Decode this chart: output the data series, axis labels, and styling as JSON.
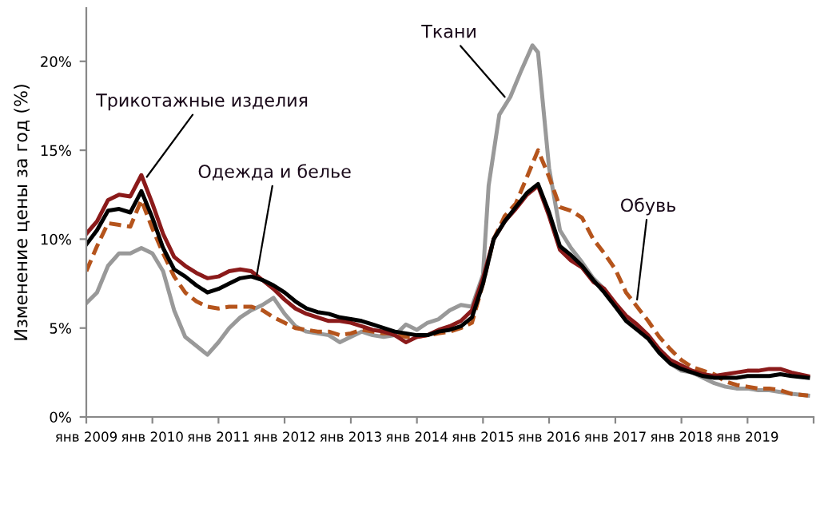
{
  "chart_data": {
    "type": "line",
    "ylabel": "Изменение цены за год (%)",
    "x": [
      "2009-01",
      "2009-03",
      "2009-05",
      "2009-07",
      "2009-09",
      "2009-11",
      "2010-01",
      "2010-03",
      "2010-05",
      "2010-07",
      "2010-09",
      "2010-11",
      "2011-01",
      "2011-03",
      "2011-05",
      "2011-07",
      "2011-09",
      "2011-11",
      "2012-01",
      "2012-03",
      "2012-05",
      "2012-07",
      "2012-09",
      "2012-11",
      "2013-01",
      "2013-03",
      "2013-05",
      "2013-07",
      "2013-09",
      "2013-11",
      "2014-01",
      "2014-03",
      "2014-05",
      "2014-07",
      "2014-09",
      "2014-11",
      "2015-01",
      "2015-03",
      "2015-05",
      "2015-07",
      "2015-09",
      "2015-11",
      "2016-01",
      "2016-03",
      "2016-05",
      "2016-07",
      "2016-09",
      "2016-11",
      "2017-01",
      "2017-03",
      "2017-05",
      "2017-07",
      "2017-09",
      "2017-11",
      "2018-01",
      "2018-03",
      "2018-05",
      "2018-07",
      "2018-09",
      "2018-11",
      "2019-01",
      "2019-03",
      "2019-05",
      "2019-07",
      "2019-09",
      "2019-12"
    ],
    "series": [
      {
        "color": "#999999",
        "x": [
          "2009-01",
          "2009-03",
          "2009-05",
          "2009-07",
          "2009-09",
          "2009-11",
          "2010-01",
          "2010-03",
          "2010-05",
          "2010-07",
          "2010-09",
          "2010-11",
          "2011-01",
          "2011-03",
          "2011-05",
          "2011-07",
          "2011-09",
          "2011-11",
          "2012-01",
          "2012-03",
          "2012-05",
          "2012-07",
          "2012-09",
          "2012-11",
          "2013-01",
          "2013-03",
          "2013-05",
          "2013-07",
          "2013-09",
          "2013-11",
          "2014-01",
          "2014-03",
          "2014-05",
          "2014-07",
          "2014-09",
          "2014-11",
          "2015-01",
          "2015-02",
          "2015-04",
          "2015-06",
          "2015-08",
          "2015-10",
          "2015-11",
          "2016-01",
          "2016-03",
          "2016-05",
          "2016-07",
          "2016-09",
          "2016-11",
          "2017-01",
          "2017-03",
          "2017-05",
          "2017-07",
          "2017-09",
          "2017-11",
          "2018-01",
          "2018-03",
          "2018-05",
          "2018-07",
          "2018-09",
          "2018-11",
          "2019-01",
          "2019-03",
          "2019-05",
          "2019-07",
          "2019-09",
          "2019-12"
        ],
        "values": [
          6.4,
          7.0,
          8.5,
          9.2,
          9.2,
          9.5,
          9.2,
          8.2,
          6.0,
          4.5,
          4.0,
          3.5,
          4.2,
          5.0,
          5.6,
          6.0,
          6.3,
          6.7,
          5.8,
          5.1,
          4.8,
          4.7,
          4.6,
          4.2,
          4.5,
          4.8,
          4.6,
          4.5,
          4.6,
          5.2,
          4.9,
          5.3,
          5.5,
          6.0,
          6.3,
          6.2,
          8.0,
          13.0,
          17.0,
          18.0,
          19.5,
          20.9,
          20.5,
          14.0,
          10.5,
          9.5,
          8.7,
          7.8,
          7.2,
          6.3,
          5.5,
          5.1,
          4.5,
          3.8,
          3.0,
          2.6,
          2.5,
          2.2,
          1.9,
          1.7,
          1.6,
          1.6,
          1.5,
          1.5,
          1.4,
          1.3,
          1.2
        ]
      },
      {
        "color": "#b5541c",
        "line_style": "dashed",
        "values": [
          8.2,
          9.6,
          10.9,
          10.8,
          10.7,
          12.2,
          10.6,
          9.2,
          7.9,
          7.0,
          6.5,
          6.2,
          6.1,
          6.2,
          6.2,
          6.2,
          6.0,
          5.6,
          5.3,
          5.0,
          4.9,
          4.8,
          4.8,
          4.6,
          4.7,
          4.9,
          4.8,
          4.7,
          4.7,
          4.5,
          4.5,
          4.6,
          4.7,
          4.8,
          5.0,
          5.3,
          7.5,
          10.0,
          11.3,
          12.0,
          13.5,
          15.0,
          13.5,
          11.8,
          11.6,
          11.2,
          10.0,
          9.2,
          8.3,
          7.0,
          6.2,
          5.4,
          4.5,
          3.8,
          3.2,
          2.8,
          2.6,
          2.4,
          2.0,
          1.8,
          1.7,
          1.6,
          1.6,
          1.5,
          1.3,
          1.2
        ]
      },
      {
        "color": "#8b1a1a",
        "values": [
          10.3,
          11.0,
          12.2,
          12.5,
          12.4,
          13.6,
          12.0,
          10.3,
          9.0,
          8.5,
          8.1,
          7.8,
          7.9,
          8.2,
          8.3,
          8.2,
          7.7,
          7.2,
          6.6,
          6.1,
          5.8,
          5.6,
          5.4,
          5.4,
          5.3,
          5.1,
          4.9,
          4.8,
          4.6,
          4.2,
          4.5,
          4.6,
          4.9,
          5.1,
          5.4,
          6.0,
          7.8,
          10.0,
          11.0,
          11.7,
          12.5,
          13.0,
          11.3,
          9.4,
          8.8,
          8.4,
          7.6,
          7.2,
          6.4,
          5.7,
          5.2,
          4.6,
          3.8,
          3.2,
          2.9,
          2.6,
          2.4,
          2.3,
          2.4,
          2.5,
          2.6,
          2.6,
          2.7,
          2.7,
          2.5,
          2.3
        ]
      },
      {
        "color": "#000000",
        "values": [
          9.7,
          10.5,
          11.6,
          11.7,
          11.5,
          12.7,
          11.2,
          9.5,
          8.3,
          7.9,
          7.4,
          7.0,
          7.2,
          7.5,
          7.8,
          7.9,
          7.7,
          7.4,
          7.0,
          6.5,
          6.1,
          5.9,
          5.8,
          5.6,
          5.5,
          5.4,
          5.2,
          5.0,
          4.8,
          4.7,
          4.6,
          4.6,
          4.8,
          4.9,
          5.1,
          5.6,
          7.5,
          10.0,
          11.0,
          11.8,
          12.6,
          13.1,
          11.5,
          9.6,
          9.1,
          8.5,
          7.7,
          7.0,
          6.2,
          5.4,
          4.9,
          4.4,
          3.6,
          3.0,
          2.7,
          2.5,
          2.3,
          2.2,
          2.2,
          2.2,
          2.3,
          2.3,
          2.3,
          2.4,
          2.3,
          2.2
        ]
      }
    ],
    "xlim": [
      "2009-01",
      "2020-01"
    ],
    "xticks": [
      {
        "value": "2009-01",
        "label": "янв 2009"
      },
      {
        "value": "2010-01",
        "label": "янв 2010"
      },
      {
        "value": "2011-01",
        "label": "янв 2011"
      },
      {
        "value": "2012-01",
        "label": "янв 2012"
      },
      {
        "value": "2013-01",
        "label": "янв 2013"
      },
      {
        "value": "2014-01",
        "label": "янв 2014"
      },
      {
        "value": "2015-01",
        "label": "янв 2015"
      },
      {
        "value": "2016-01",
        "label": "янв 2016"
      },
      {
        "value": "2017-01",
        "label": "янв 2017"
      },
      {
        "value": "2018-01",
        "label": "янв 2018"
      },
      {
        "value": "2019-01",
        "label": "янв 2019"
      },
      {
        "value": "2020-01",
        "label": null
      }
    ],
    "ylim": [
      0,
      23
    ],
    "yticks": [
      {
        "value": 0,
        "label": "0%"
      },
      {
        "value": 5,
        "label": "5%"
      },
      {
        "value": 10,
        "label": "10%"
      },
      {
        "value": 15,
        "label": "15%"
      },
      {
        "value": 20,
        "label": "20%"
      }
    ],
    "annotations": [
      {
        "text": "Трикотажные изделия",
        "x": "2009-12",
        "y": 13.5
      },
      {
        "text": "Одежда и белье",
        "x": "2011-08",
        "y": 8.0
      },
      {
        "text": "Ткани",
        "x": "2015-05",
        "y": 18.0
      },
      {
        "text": "Обувь",
        "x": "2017-05",
        "y": 6.6
      }
    ],
    "grid": false,
    "legend": false
  }
}
